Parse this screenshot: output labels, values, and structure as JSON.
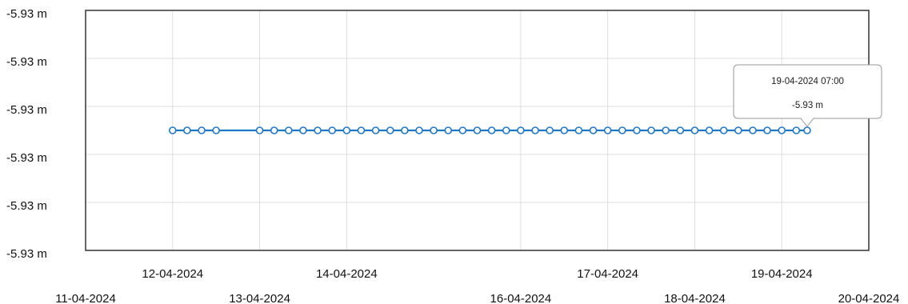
{
  "chart_data": {
    "type": "line",
    "title": "",
    "xlabel": "",
    "ylabel": "",
    "y_tick_labels": [
      "-5.93 m",
      "-5.93 m",
      "-5.93 m",
      "-5.93 m",
      "-5.93 m",
      "-5.93 m"
    ],
    "x_tick_labels": [
      "11-04-2024",
      "12-04-2024",
      "13-04-2024",
      "14-04-2024",
      "16-04-2024",
      "17-04-2024",
      "18-04-2024",
      "19-04-2024",
      "20-04-2024"
    ],
    "x_range": [
      "11-04-2024 00:00",
      "20-04-2024 00:00"
    ],
    "grid": true,
    "legend": "none",
    "colors": {
      "series": "#1f77c8",
      "marker_fill": "#ffffff",
      "grid": "#dddddd",
      "axis": "#333333"
    },
    "series": [
      {
        "name": "",
        "unit": "m",
        "x": [
          "12-04-2024 00:00",
          "12-04-2024 04:00",
          "12-04-2024 08:00",
          "12-04-2024 12:00",
          "13-04-2024 00:00",
          "13-04-2024 04:00",
          "13-04-2024 08:00",
          "13-04-2024 12:00",
          "13-04-2024 16:00",
          "13-04-2024 20:00",
          "14-04-2024 00:00",
          "14-04-2024 04:00",
          "14-04-2024 08:00",
          "14-04-2024 12:00",
          "14-04-2024 16:00",
          "14-04-2024 20:00",
          "15-04-2024 00:00",
          "15-04-2024 04:00",
          "15-04-2024 08:00",
          "15-04-2024 12:00",
          "15-04-2024 16:00",
          "15-04-2024 20:00",
          "16-04-2024 00:00",
          "16-04-2024 04:00",
          "16-04-2024 08:00",
          "16-04-2024 12:00",
          "16-04-2024 16:00",
          "16-04-2024 20:00",
          "17-04-2024 00:00",
          "17-04-2024 04:00",
          "17-04-2024 08:00",
          "17-04-2024 12:00",
          "17-04-2024 16:00",
          "17-04-2024 20:00",
          "18-04-2024 00:00",
          "18-04-2024 04:00",
          "18-04-2024 08:00",
          "18-04-2024 12:00",
          "18-04-2024 16:00",
          "18-04-2024 20:00",
          "19-04-2024 00:00",
          "19-04-2024 04:00",
          "19-04-2024 07:00"
        ],
        "values": [
          -5.93,
          -5.93,
          -5.93,
          -5.93,
          -5.93,
          -5.93,
          -5.93,
          -5.93,
          -5.93,
          -5.93,
          -5.93,
          -5.93,
          -5.93,
          -5.93,
          -5.93,
          -5.93,
          -5.93,
          -5.93,
          -5.93,
          -5.93,
          -5.93,
          -5.93,
          -5.93,
          -5.93,
          -5.93,
          -5.93,
          -5.93,
          -5.93,
          -5.93,
          -5.93,
          -5.93,
          -5.93,
          -5.93,
          -5.93,
          -5.93,
          -5.93,
          -5.93,
          -5.93,
          -5.93,
          -5.93,
          -5.93,
          -5.93,
          -5.93
        ]
      }
    ],
    "tooltip": {
      "date": "19-04-2024 07:00",
      "value": "-5.93 m"
    }
  }
}
